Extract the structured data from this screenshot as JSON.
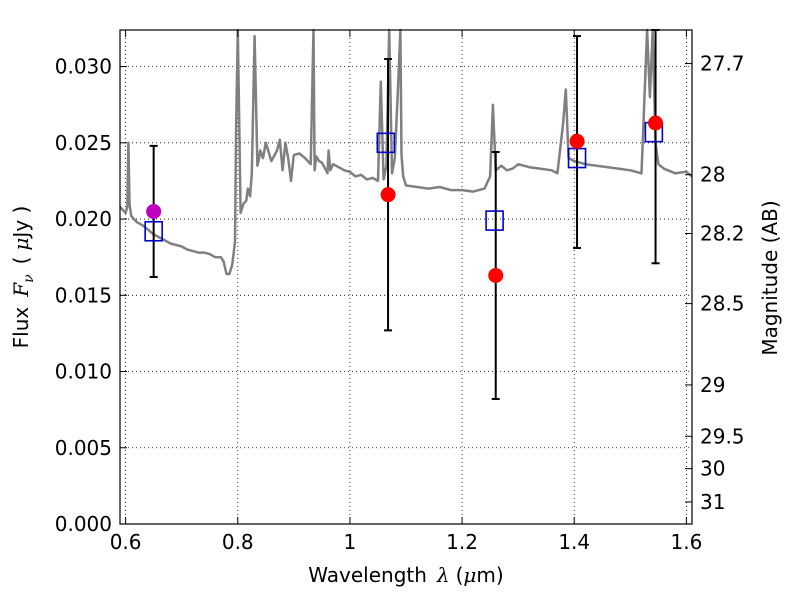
{
  "chart_data": {
    "type": "scatter",
    "xlabel": {
      "text": "Wavelength",
      "sym": "λ",
      "unit": "(",
      "mu": "μ",
      "unit_end": "m)"
    },
    "ylabel": {
      "text": "Flux",
      "sym": "F",
      "sub": "ν",
      "unit": "(",
      "mu": "μ",
      "unit_end": "Jy )"
    },
    "y2label": "Magnitude (AB)",
    "xlim": [
      0.59,
      1.61
    ],
    "ylim": [
      0.0,
      0.0324
    ],
    "grid": true,
    "grid_style": "dotted",
    "x_ticks": [
      0.6,
      0.8,
      1.0,
      1.2,
      1.4,
      1.6
    ],
    "x_tick_labels": [
      "0.6",
      "0.8",
      "1",
      "1.2",
      "1.4",
      "1.6"
    ],
    "y_ticks": [
      0.0,
      0.005,
      0.01,
      0.015,
      0.02,
      0.025,
      0.03
    ],
    "y_tick_labels": [
      "0.000",
      "0.005",
      "0.010",
      "0.015",
      "0.020",
      "0.025",
      "0.030"
    ],
    "y2_ticks": [
      {
        "label": "27.7",
        "mag": 27.7
      },
      {
        "label": "28",
        "mag": 28.0
      },
      {
        "label": "28.2",
        "mag": 28.2
      },
      {
        "label": "28.5",
        "mag": 28.5
      },
      {
        "label": "29",
        "mag": 29.0
      },
      {
        "label": "29.5",
        "mag": 29.5
      },
      {
        "label": "30",
        "mag": 30.0
      },
      {
        "label": "31",
        "mag": 31.0
      }
    ],
    "colors": {
      "model": "#808080",
      "observed": "#ff0000",
      "observed_first": "#bf00bf",
      "model_band": "#0000cc",
      "errorbar": "#000000"
    },
    "model_spectrum": {
      "x": [
        0.59,
        0.595,
        0.6,
        0.603,
        0.605,
        0.607,
        0.61,
        0.62,
        0.63,
        0.64,
        0.65,
        0.66,
        0.67,
        0.68,
        0.69,
        0.7,
        0.71,
        0.72,
        0.73,
        0.74,
        0.75,
        0.76,
        0.77,
        0.775,
        0.78,
        0.785,
        0.79,
        0.795,
        0.797,
        0.8,
        0.805,
        0.81,
        0.815,
        0.818,
        0.822,
        0.825,
        0.83,
        0.835,
        0.838,
        0.84,
        0.845,
        0.85,
        0.86,
        0.87,
        0.875,
        0.88,
        0.885,
        0.89,
        0.895,
        0.9,
        0.91,
        0.92,
        0.93,
        0.935,
        0.937,
        0.94,
        0.945,
        0.95,
        0.96,
        0.962,
        0.965,
        0.97,
        0.98,
        0.99,
        1.0,
        1.01,
        1.02,
        1.03,
        1.04,
        1.05,
        1.055,
        1.06,
        1.065,
        1.07,
        1.075,
        1.08,
        1.085,
        1.09,
        1.092,
        1.095,
        1.1,
        1.12,
        1.14,
        1.16,
        1.18,
        1.2,
        1.22,
        1.24,
        1.25,
        1.255,
        1.26,
        1.27,
        1.28,
        1.29,
        1.3,
        1.32,
        1.34,
        1.36,
        1.37,
        1.38,
        1.385,
        1.39,
        1.4,
        1.42,
        1.44,
        1.46,
        1.48,
        1.5,
        1.52,
        1.53,
        1.535,
        1.54,
        1.545,
        1.55,
        1.56,
        1.58,
        1.6,
        1.61
      ],
      "y": [
        0.0208,
        0.0206,
        0.0204,
        0.0208,
        0.025,
        0.021,
        0.0202,
        0.0198,
        0.0196,
        0.0193,
        0.019,
        0.0188,
        0.0186,
        0.0184,
        0.0183,
        0.0182,
        0.018,
        0.0179,
        0.0178,
        0.0178,
        0.0177,
        0.0175,
        0.0175,
        0.0172,
        0.0164,
        0.0164,
        0.017,
        0.0185,
        0.026,
        0.033,
        0.0204,
        0.021,
        0.0212,
        0.022,
        0.0215,
        0.023,
        0.032,
        0.0235,
        0.024,
        0.0245,
        0.024,
        0.025,
        0.0238,
        0.0245,
        0.0252,
        0.0232,
        0.025,
        0.024,
        0.0225,
        0.0242,
        0.0243,
        0.024,
        0.0236,
        0.033,
        0.0232,
        0.0241,
        0.0238,
        0.0237,
        0.023,
        0.0245,
        0.0232,
        0.0236,
        0.0234,
        0.0232,
        0.0231,
        0.0228,
        0.0229,
        0.0226,
        0.0227,
        0.0225,
        0.029,
        0.0226,
        0.0235,
        0.033,
        0.023,
        0.024,
        0.028,
        0.033,
        0.0242,
        0.0228,
        0.0222,
        0.0221,
        0.022,
        0.0221,
        0.0219,
        0.0219,
        0.0218,
        0.022,
        0.0228,
        0.0275,
        0.0232,
        0.0235,
        0.0232,
        0.0233,
        0.0236,
        0.0234,
        0.0233,
        0.0232,
        0.023,
        0.0262,
        0.0285,
        0.024,
        0.0238,
        0.0236,
        0.0235,
        0.0234,
        0.0233,
        0.0232,
        0.023,
        0.033,
        0.028,
        0.033,
        0.025,
        0.0236,
        0.0233,
        0.023,
        0.0231,
        0.0228
      ]
    },
    "model_bands": {
      "x": [
        0.65,
        1.064,
        1.258,
        1.405,
        1.542
      ],
      "y": [
        0.0192,
        0.025,
        0.0199,
        0.024,
        0.0257
      ]
    },
    "observed": {
      "x": [
        0.65,
        1.068,
        1.26,
        1.405,
        1.545
      ],
      "y": [
        0.0205,
        0.0216,
        0.0163,
        0.0251,
        0.0263
      ],
      "yerr_low": [
        0.0162,
        0.0127,
        0.0082,
        0.0181,
        0.0171
      ],
      "yerr_high": [
        0.0248,
        0.0305,
        0.0244,
        0.032,
        0.0327
      ]
    }
  }
}
